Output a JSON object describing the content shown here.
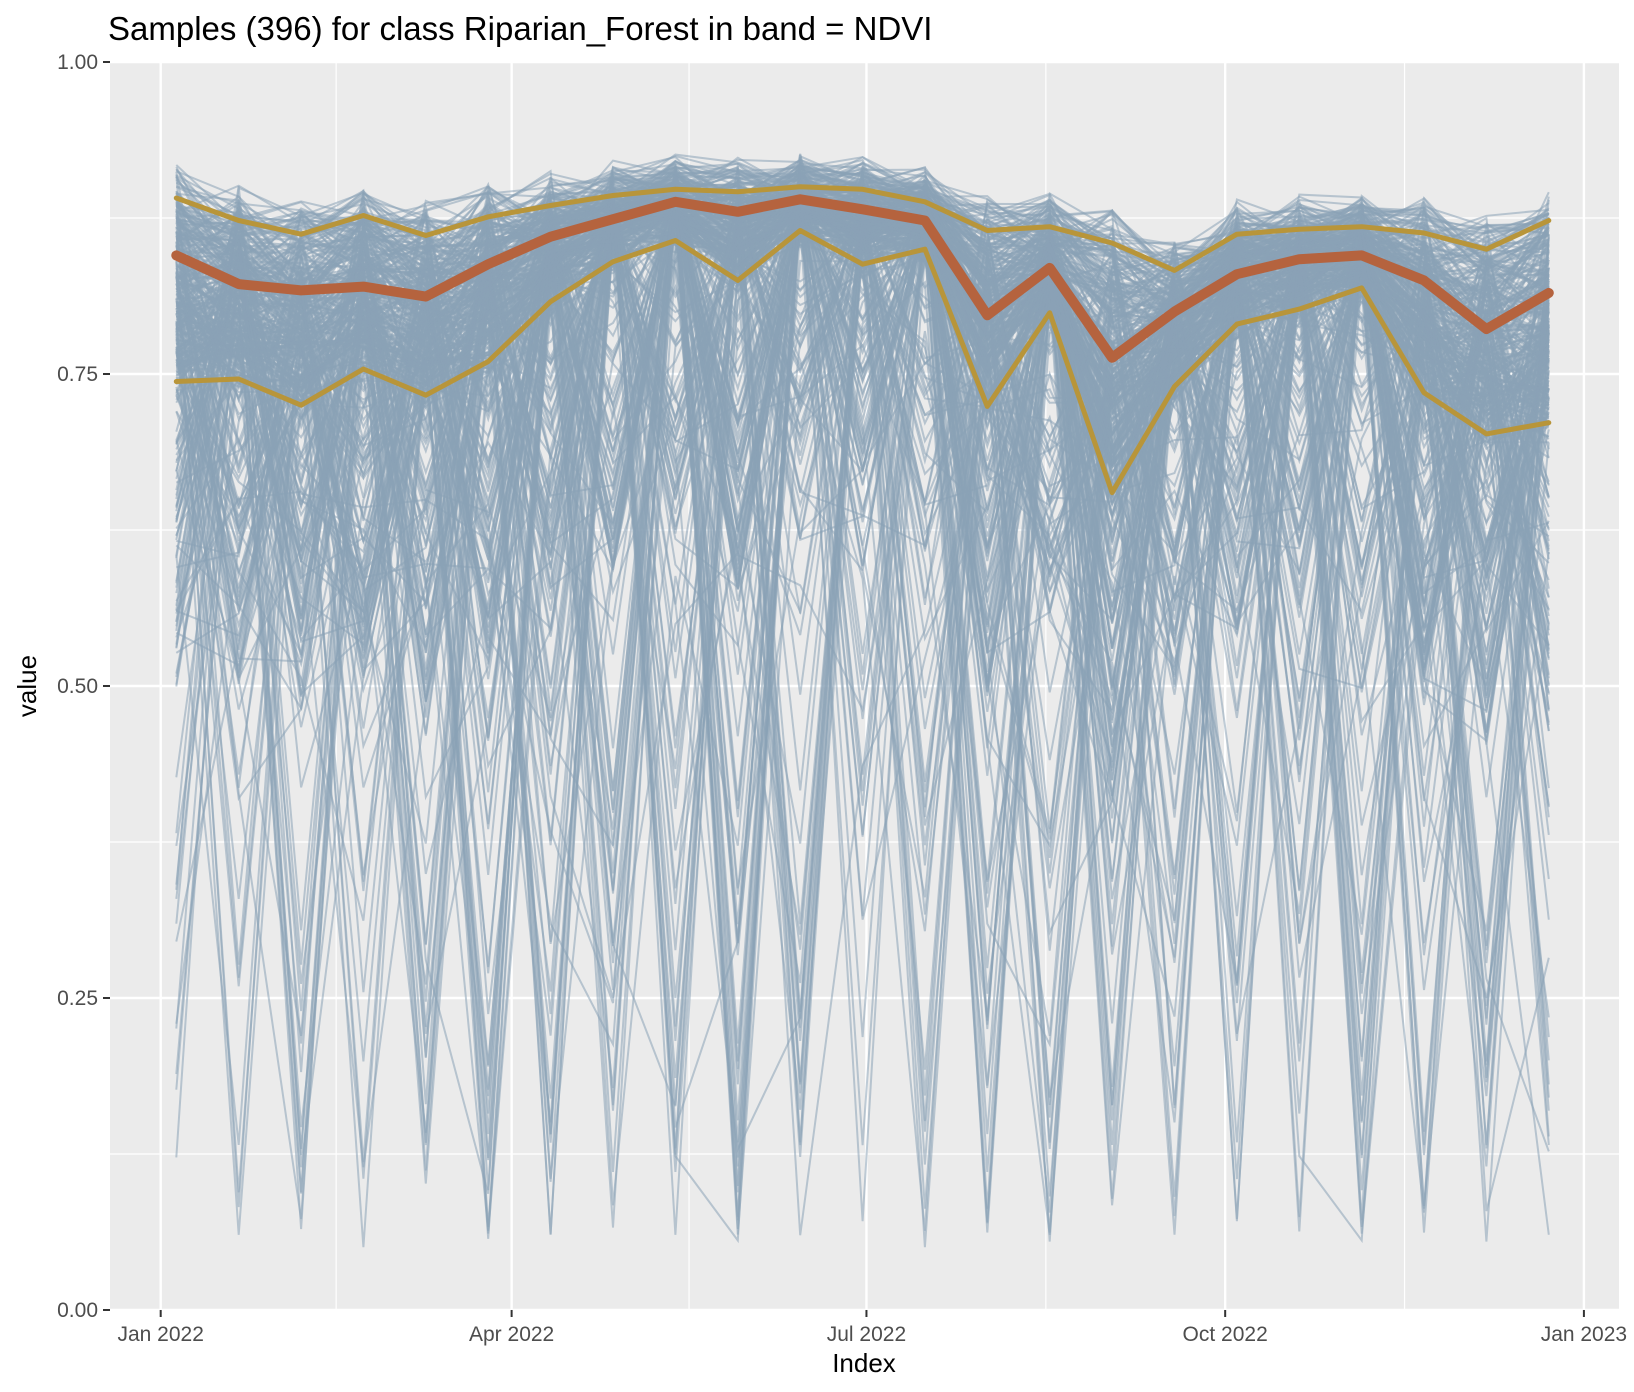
{
  "chart_data": {
    "type": "line",
    "title": "Samples (396) for class Riparian_Forest in band = NDVI",
    "xlabel": "Index",
    "ylabel": "value",
    "ylim": [
      0,
      1
    ],
    "xlim": [
      "2021-12-19",
      "2023-01-10"
    ],
    "y_ticks": [
      "0.00",
      "0.25",
      "0.50",
      "0.75",
      "1.00"
    ],
    "x_ticks": [
      {
        "date": "2022-01-01",
        "label": "Jan 2022"
      },
      {
        "date": "2022-04-01",
        "label": "Apr 2022"
      },
      {
        "date": "2022-07-01",
        "label": "Jul 2022"
      },
      {
        "date": "2022-10-01",
        "label": "Oct 2022"
      },
      {
        "date": "2023-01-01",
        "label": "Jan 2023"
      }
    ],
    "grid": true,
    "legend": "none",
    "sample_count": 396,
    "dates": [
      "2022-01-05",
      "2022-01-21",
      "2022-02-06",
      "2022-02-22",
      "2022-03-10",
      "2022-03-26",
      "2022-04-11",
      "2022-04-27",
      "2022-05-13",
      "2022-05-29",
      "2022-06-14",
      "2022-06-30",
      "2022-07-16",
      "2022-08-01",
      "2022-08-17",
      "2022-09-02",
      "2022-09-18",
      "2022-10-04",
      "2022-10-20",
      "2022-11-05",
      "2022-11-21",
      "2022-12-07",
      "2022-12-23"
    ],
    "series": [
      {
        "role": "mean",
        "color": "#b5633e",
        "values": [
          0.845,
          0.822,
          0.817,
          0.82,
          0.812,
          0.838,
          0.86,
          0.874,
          0.888,
          0.88,
          0.89,
          0.882,
          0.873,
          0.797,
          0.835,
          0.763,
          0.8,
          0.83,
          0.842,
          0.845,
          0.825,
          0.786,
          0.815
        ]
      },
      {
        "role": "upper-quantile",
        "color": "#b8953a",
        "values": [
          0.891,
          0.873,
          0.862,
          0.877,
          0.861,
          0.876,
          0.885,
          0.893,
          0.898,
          0.896,
          0.9,
          0.898,
          0.888,
          0.865,
          0.868,
          0.855,
          0.833,
          0.862,
          0.866,
          0.868,
          0.863,
          0.85,
          0.873
        ]
      },
      {
        "role": "lower-quantile",
        "color": "#b8953a",
        "values": [
          0.744,
          0.746,
          0.725,
          0.754,
          0.733,
          0.76,
          0.808,
          0.84,
          0.857,
          0.825,
          0.865,
          0.838,
          0.85,
          0.724,
          0.799,
          0.655,
          0.74,
          0.79,
          0.802,
          0.819,
          0.735,
          0.702,
          0.711
        ]
      }
    ],
    "samples_color": "#8aa2b7"
  }
}
